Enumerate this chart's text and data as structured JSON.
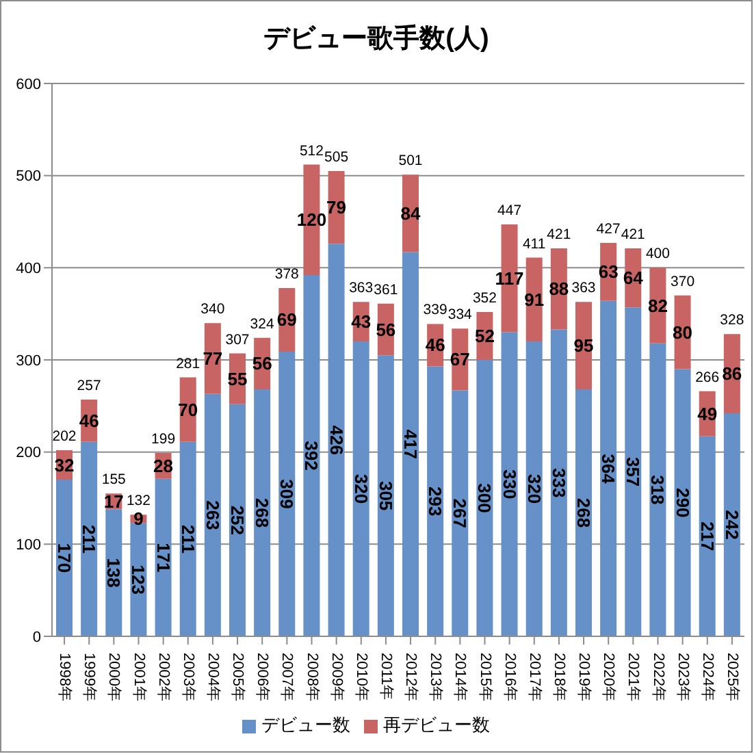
{
  "chart_data": {
    "type": "bar",
    "title": "デビュー歌手数(人)",
    "categories": [
      "1998年",
      "1999年",
      "2000年",
      "2001年",
      "2002年",
      "2003年",
      "2004年",
      "2005年",
      "2006年",
      "2007年",
      "2008年",
      "2009年",
      "2010年",
      "2011年",
      "2012年",
      "2013年",
      "2014年",
      "2015年",
      "2016年",
      "2017年",
      "2018年",
      "2019年",
      "2020年",
      "2021年",
      "2022年",
      "2023年",
      "2024年",
      "2025年"
    ],
    "series": [
      {
        "name": "デビュー数",
        "color": "#6690c8",
        "values": [
          170,
          211,
          138,
          123,
          171,
          211,
          263,
          252,
          268,
          309,
          392,
          426,
          320,
          305,
          417,
          293,
          267,
          300,
          330,
          320,
          333,
          268,
          364,
          357,
          318,
          290,
          217,
          242
        ]
      },
      {
        "name": "再デビュー数",
        "color": "#c86464",
        "values": [
          32,
          46,
          17,
          9,
          28,
          70,
          77,
          55,
          56,
          69,
          120,
          79,
          43,
          56,
          84,
          46,
          67,
          52,
          117,
          91,
          88,
          95,
          63,
          64,
          82,
          80,
          49,
          86
        ]
      }
    ],
    "stacked": true,
    "ylim": [
      0,
      600
    ],
    "yticks": [
      0,
      100,
      200,
      300,
      400,
      500,
      600
    ],
    "grid": "y",
    "legend": "bottom",
    "data_labels": true,
    "totals": [
      "202",
      "257",
      "155",
      "132",
      "199",
      "281",
      "340",
      "307",
      "324",
      "378",
      "512",
      "505",
      "363",
      "361",
      "501",
      "339",
      "334",
      "352",
      "447",
      "411",
      "421",
      "363",
      "427",
      "421",
      "400",
      "370",
      "266",
      "328"
    ]
  }
}
